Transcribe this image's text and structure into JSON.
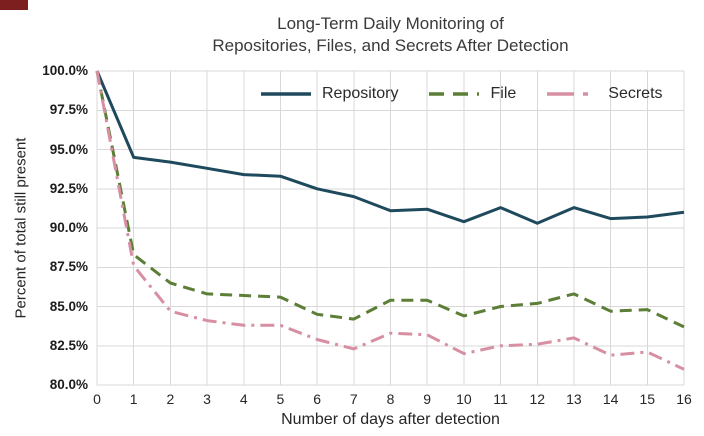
{
  "artifact": {
    "color": "#7d1f1f"
  },
  "chart_data": {
    "type": "line",
    "title_line1": "Long-Term Daily Monitoring of",
    "title_line2": "Repositories, Files, and Secrets After Detection",
    "xlabel": "Number of days after detection",
    "ylabel": "Percent of total still present",
    "xlim": [
      0,
      16
    ],
    "ylim": [
      80,
      100
    ],
    "grid": true,
    "legend_position": "top-inside-horizontal",
    "x": [
      0,
      1,
      2,
      3,
      4,
      5,
      6,
      7,
      8,
      9,
      10,
      11,
      12,
      13,
      14,
      15,
      16
    ],
    "x_tick_labels": [
      "0",
      "1",
      "2",
      "3",
      "4",
      "5",
      "6",
      "7",
      "8",
      "9",
      "10",
      "11",
      "12",
      "13",
      "14",
      "15",
      "16"
    ],
    "y_ticks": [
      100,
      97.5,
      95,
      92.5,
      90,
      87.5,
      85,
      82.5,
      80
    ],
    "y_tick_labels": [
      "100.0%",
      "97.5%",
      "95.0%",
      "92.5%",
      "90.0%",
      "87.5%",
      "85.0%",
      "82.5%",
      "80.0%"
    ],
    "series": [
      {
        "name": "Repository",
        "color": "#1f4a5d",
        "style": "solid",
        "values": [
          100,
          94.5,
          94.2,
          93.8,
          93.4,
          93.3,
          92.5,
          92.0,
          91.1,
          91.2,
          90.4,
          91.3,
          90.3,
          91.3,
          90.6,
          90.7,
          91.0
        ]
      },
      {
        "name": "File",
        "color": "#5c7e36",
        "style": "dashed",
        "values": [
          100,
          88.3,
          86.5,
          85.8,
          85.7,
          85.6,
          84.5,
          84.2,
          85.4,
          85.4,
          84.4,
          85.0,
          85.2,
          85.8,
          84.7,
          84.8,
          83.7
        ]
      },
      {
        "name": "Secrets",
        "color": "#d78fa2",
        "style": "dashdot",
        "values": [
          100,
          87.6,
          84.7,
          84.1,
          83.8,
          83.8,
          82.9,
          82.3,
          83.3,
          83.2,
          82.0,
          82.5,
          82.6,
          83.0,
          81.9,
          82.1,
          81.0
        ]
      }
    ]
  }
}
